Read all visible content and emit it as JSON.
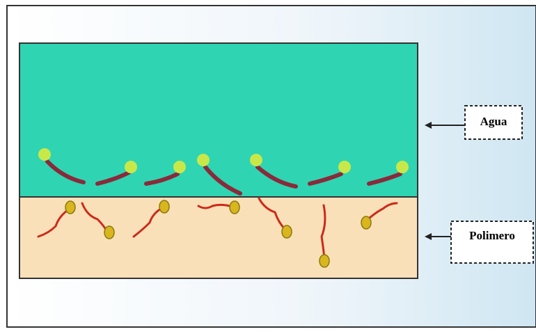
{
  "labels": {
    "water": "Agua",
    "polymer": "Polimero"
  }
}
